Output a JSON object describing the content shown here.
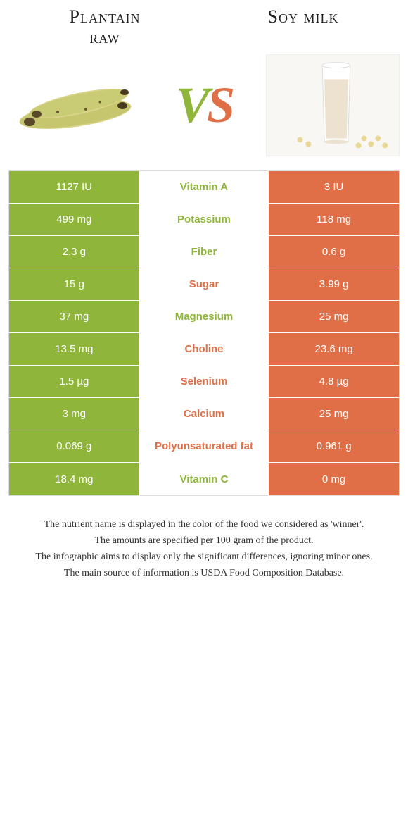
{
  "colors": {
    "green": "#8fb63b",
    "orange": "#e06f47"
  },
  "food_left": {
    "title": "Plantain\nraw"
  },
  "food_right": {
    "title": "Soy milk"
  },
  "vs": {
    "v": "V",
    "s": "S"
  },
  "rows": [
    {
      "left": "1127 IU",
      "label": "Vitamin A",
      "right": "3 IU",
      "winner": "left"
    },
    {
      "left": "499 mg",
      "label": "Potassium",
      "right": "118 mg",
      "winner": "left"
    },
    {
      "left": "2.3 g",
      "label": "Fiber",
      "right": "0.6 g",
      "winner": "left"
    },
    {
      "left": "15 g",
      "label": "Sugar",
      "right": "3.99 g",
      "winner": "right"
    },
    {
      "left": "37 mg",
      "label": "Magnesium",
      "right": "25 mg",
      "winner": "left"
    },
    {
      "left": "13.5 mg",
      "label": "Choline",
      "right": "23.6 mg",
      "winner": "right"
    },
    {
      "left": "1.5 µg",
      "label": "Selenium",
      "right": "4.8 µg",
      "winner": "right"
    },
    {
      "left": "3 mg",
      "label": "Calcium",
      "right": "25 mg",
      "winner": "right"
    },
    {
      "left": "0.069 g",
      "label": "Polyunsaturated fat",
      "right": "0.961 g",
      "winner": "right"
    },
    {
      "left": "18.4 mg",
      "label": "Vitamin C",
      "right": "0 mg",
      "winner": "left"
    }
  ],
  "footnotes": [
    "The nutrient name is displayed in the color of the food we considered as 'winner'.",
    "The amounts are specified per 100 gram of the product.",
    "The infographic aims to display only the significant differences, ignoring minor ones.",
    "The main source of information is USDA Food Composition Database."
  ]
}
